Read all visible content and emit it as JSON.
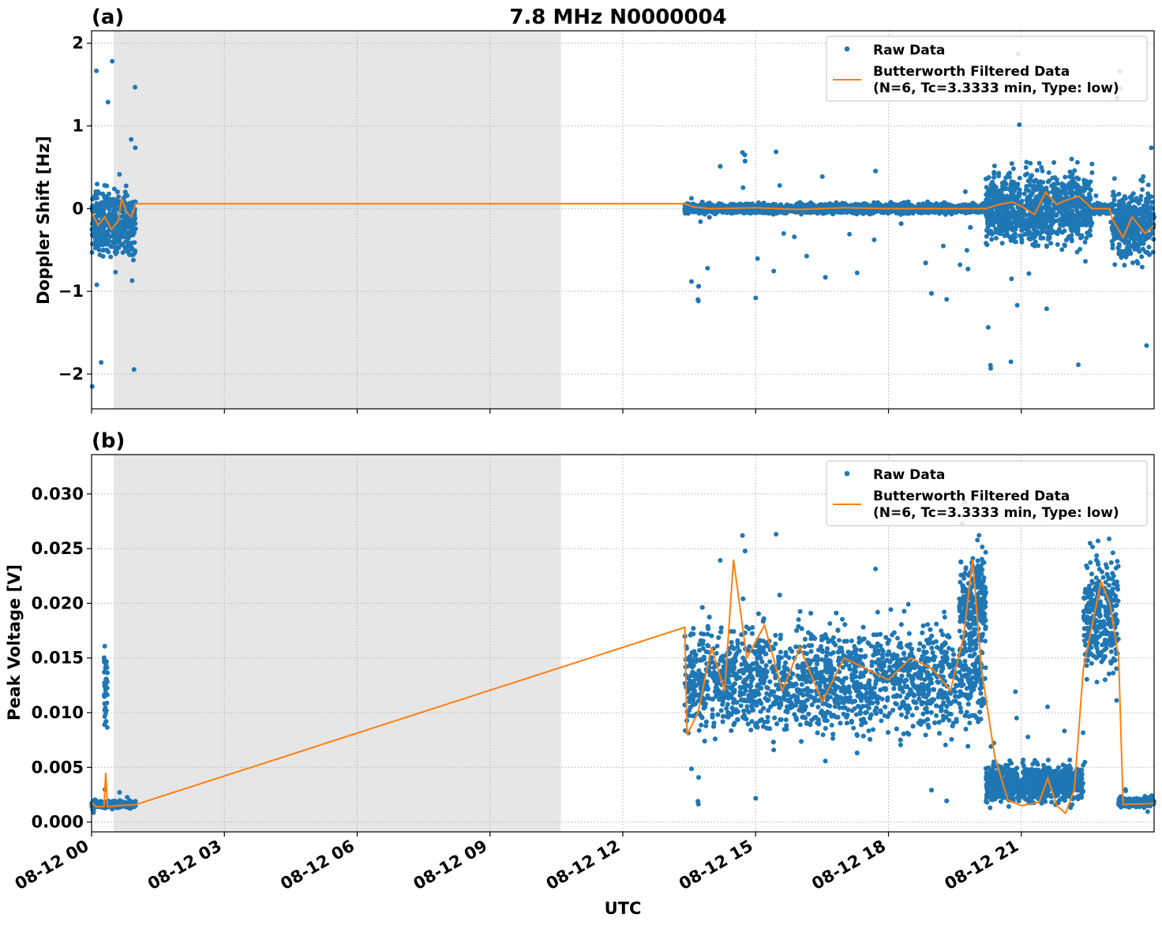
{
  "title": "7.8 MHz N0000004",
  "xlabel": "UTC",
  "x_ticks": [
    "08-12 00",
    "08-12 03",
    "08-12 06",
    "08-12 09",
    "08-12 12",
    "08-12 15",
    "08-12 18",
    "08-12 21"
  ],
  "colors": {
    "raw": "#1f77b4",
    "filtered": "#ff7f0e",
    "shade": "#e6e6e6",
    "grid": "#b0b0b0"
  },
  "legend": {
    "raw": "Raw Data",
    "filtered_line1": "Butterworth Filtered Data",
    "filtered_line2": "(N=6, Tc=3.3333 min, Type: low)"
  },
  "chart_data": [
    {
      "panel": "(a)",
      "type": "scatter",
      "ylabel": "Doppler Shift [Hz]",
      "xlim_hours": [
        0,
        24
      ],
      "ylim": [
        -2.42,
        2.15
      ],
      "y_ticks": [
        -2,
        -1,
        0,
        1,
        2
      ],
      "y_tick_labels": [
        "−2",
        "−1",
        "0",
        "1",
        "2"
      ],
      "grid": true,
      "legend_position": "top-right",
      "shaded_interval_hours": [
        0.5,
        10.6
      ],
      "raw_segments": [
        {
          "x_hours": [
            0.0,
            1.0
          ],
          "center": -0.2,
          "spread": 0.85,
          "outlier_range": [
            -2.2,
            1.95
          ]
        },
        {
          "x_hours": [
            13.4,
            20.2
          ],
          "center": 0.0,
          "spread": 0.12,
          "outlier_range": [
            -1.15,
            0.7
          ]
        },
        {
          "x_hours": [
            20.2,
            22.6
          ],
          "center": 0.0,
          "spread": 0.9,
          "outlier_range": [
            -2.0,
            1.9
          ]
        },
        {
          "x_hours": [
            22.6,
            23.05
          ],
          "center": 0.0,
          "spread": 0.12,
          "outlier_range": [
            -0.3,
            0.3
          ]
        },
        {
          "x_hours": [
            23.05,
            24.0
          ],
          "center": -0.2,
          "spread": 0.85,
          "outlier_range": [
            -1.9,
            1.7
          ]
        }
      ],
      "filtered_points": [
        [
          0.0,
          -0.05
        ],
        [
          0.15,
          -0.2
        ],
        [
          0.3,
          -0.1
        ],
        [
          0.45,
          -0.25
        ],
        [
          0.6,
          -0.15
        ],
        [
          0.68,
          0.12
        ],
        [
          0.8,
          -0.05
        ],
        [
          0.9,
          -0.1
        ],
        [
          1.0,
          0.06
        ],
        [
          13.4,
          0.06
        ],
        [
          13.6,
          0.02
        ],
        [
          14.0,
          0.0
        ],
        [
          15.0,
          0.01
        ],
        [
          16.0,
          -0.01
        ],
        [
          17.0,
          0.01
        ],
        [
          18.0,
          0.0
        ],
        [
          19.0,
          0.0
        ],
        [
          20.2,
          0.0
        ],
        [
          20.5,
          0.05
        ],
        [
          20.8,
          0.08
        ],
        [
          21.0,
          0.03
        ],
        [
          21.3,
          -0.07
        ],
        [
          21.55,
          0.2
        ],
        [
          21.8,
          0.05
        ],
        [
          22.0,
          0.1
        ],
        [
          22.3,
          0.15
        ],
        [
          22.6,
          0.0
        ],
        [
          23.0,
          0.0
        ],
        [
          23.05,
          -0.12
        ],
        [
          23.3,
          -0.35
        ],
        [
          23.5,
          -0.1
        ],
        [
          23.8,
          -0.3
        ],
        [
          24.0,
          -0.2
        ]
      ]
    },
    {
      "panel": "(b)",
      "type": "scatter",
      "ylabel": "Peak Voltage [V]",
      "xlim_hours": [
        0,
        24
      ],
      "ylim": [
        -0.0009,
        0.0336
      ],
      "y_ticks": [
        0.0,
        0.005,
        0.01,
        0.015,
        0.02,
        0.025,
        0.03
      ],
      "y_tick_labels": [
        "0.000",
        "0.005",
        "0.010",
        "0.015",
        "0.020",
        "0.025",
        "0.030"
      ],
      "grid": true,
      "legend_position": "top-right",
      "shaded_interval_hours": [
        0.5,
        10.6
      ],
      "raw_segments": [
        {
          "x_hours": [
            0.0,
            1.0
          ],
          "center": 0.0016,
          "spread": 0.0006,
          "outlier_range": [
            0.0008,
            0.003
          ]
        },
        {
          "x_hours": [
            0.28,
            0.36
          ],
          "center": 0.012,
          "spread": 0.0085,
          "outlier_range": [
            0.003,
            0.0205
          ]
        },
        {
          "x_hours": [
            13.4,
            20.2
          ],
          "center": 0.013,
          "spread": 0.01,
          "outlier_range": [
            0.0012,
            0.0265
          ]
        },
        {
          "x_hours": [
            19.6,
            20.2
          ],
          "center": 0.02,
          "spread": 0.009,
          "outlier_range": [
            0.008,
            0.0295
          ]
        },
        {
          "x_hours": [
            20.2,
            22.4
          ],
          "center": 0.0035,
          "spread": 0.0035,
          "outlier_range": [
            0.001,
            0.012
          ]
        },
        {
          "x_hours": [
            22.4,
            23.2
          ],
          "center": 0.019,
          "spread": 0.011,
          "outlier_range": [
            0.005,
            0.032
          ]
        },
        {
          "x_hours": [
            23.2,
            24.0
          ],
          "center": 0.0018,
          "spread": 0.0008,
          "outlier_range": [
            0.0008,
            0.003
          ]
        }
      ],
      "filtered_points": [
        [
          0.0,
          0.0018
        ],
        [
          0.1,
          0.0014
        ],
        [
          0.28,
          0.0014
        ],
        [
          0.32,
          0.0045
        ],
        [
          0.36,
          0.0014
        ],
        [
          0.6,
          0.0015
        ],
        [
          1.0,
          0.0016
        ],
        [
          13.4,
          0.0178
        ],
        [
          13.45,
          0.008
        ],
        [
          13.7,
          0.01
        ],
        [
          14.0,
          0.016
        ],
        [
          14.3,
          0.012
        ],
        [
          14.5,
          0.024
        ],
        [
          14.8,
          0.015
        ],
        [
          15.2,
          0.018
        ],
        [
          15.6,
          0.012
        ],
        [
          16.0,
          0.016
        ],
        [
          16.5,
          0.011
        ],
        [
          17.0,
          0.015
        ],
        [
          17.5,
          0.014
        ],
        [
          18.0,
          0.013
        ],
        [
          18.5,
          0.015
        ],
        [
          19.0,
          0.014
        ],
        [
          19.4,
          0.012
        ],
        [
          19.7,
          0.017
        ],
        [
          19.9,
          0.024
        ],
        [
          20.1,
          0.014
        ],
        [
          20.4,
          0.006
        ],
        [
          20.7,
          0.002
        ],
        [
          21.0,
          0.0015
        ],
        [
          21.4,
          0.0018
        ],
        [
          21.6,
          0.004
        ],
        [
          21.8,
          0.0015
        ],
        [
          22.0,
          0.0008
        ],
        [
          22.2,
          0.003
        ],
        [
          22.4,
          0.014
        ],
        [
          22.6,
          0.018
        ],
        [
          22.8,
          0.022
        ],
        [
          23.0,
          0.02
        ],
        [
          23.2,
          0.015
        ],
        [
          23.3,
          0.0016
        ],
        [
          24.0,
          0.0017
        ]
      ]
    }
  ]
}
